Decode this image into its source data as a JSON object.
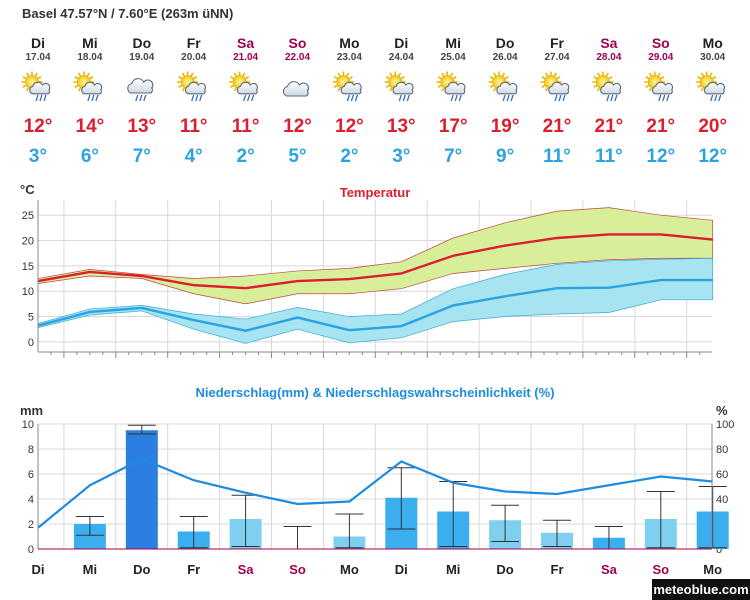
{
  "location": "Basel  47.57°N / 7.60°E (263m üNN)",
  "brand": "meteoblue.com",
  "colors": {
    "weekday": "#222222",
    "weekend": "#a00050",
    "tmax": "#dd1e2f",
    "tmin": "#2aa3e0",
    "tmax_band": "#d8ef9a",
    "tmin_band": "#a6e4f2",
    "precip_bar": "#3baef0",
    "precip_bar_dark": "#2b7fe0",
    "prob_line": "#1d8ce0"
  },
  "days": [
    {
      "name": "Di",
      "date": "17.04",
      "weekend": false,
      "icon": "sun-cloud-rain-icon",
      "tmax": "12°",
      "tmin": "3°"
    },
    {
      "name": "Mi",
      "date": "18.04",
      "weekend": false,
      "icon": "sun-cloud-rain-icon",
      "tmax": "14°",
      "tmin": "6°"
    },
    {
      "name": "Do",
      "date": "19.04",
      "weekend": false,
      "icon": "cloud-rain-icon",
      "tmax": "13°",
      "tmin": "7°"
    },
    {
      "name": "Fr",
      "date": "20.04",
      "weekend": false,
      "icon": "sun-cloud-rain-icon",
      "tmax": "11°",
      "tmin": "4°"
    },
    {
      "name": "Sa",
      "date": "21.04",
      "weekend": true,
      "icon": "sun-cloud-rain-icon",
      "tmax": "11°",
      "tmin": "2°"
    },
    {
      "name": "So",
      "date": "22.04",
      "weekend": true,
      "icon": "cloud-icon",
      "tmax": "12°",
      "tmin": "5°"
    },
    {
      "name": "Mo",
      "date": "23.04",
      "weekend": false,
      "icon": "sun-cloud-rain-icon",
      "tmax": "12°",
      "tmin": "2°"
    },
    {
      "name": "Di",
      "date": "24.04",
      "weekend": false,
      "icon": "sun-cloud-rain-icon",
      "tmax": "13°",
      "tmin": "3°"
    },
    {
      "name": "Mi",
      "date": "25.04",
      "weekend": false,
      "icon": "sun-cloud-rain-icon",
      "tmax": "17°",
      "tmin": "7°"
    },
    {
      "name": "Do",
      "date": "26.04",
      "weekend": false,
      "icon": "sun-cloud-rain-icon",
      "tmax": "19°",
      "tmin": "9°"
    },
    {
      "name": "Fr",
      "date": "27.04",
      "weekend": false,
      "icon": "sun-cloud-rain-icon",
      "tmax": "21°",
      "tmin": "11°"
    },
    {
      "name": "Sa",
      "date": "28.04",
      "weekend": true,
      "icon": "sun-cloud-rain-icon",
      "tmax": "21°",
      "tmin": "11°"
    },
    {
      "name": "So",
      "date": "29.04",
      "weekend": true,
      "icon": "sun-cloud-rain-icon",
      "tmax": "21°",
      "tmin": "12°"
    },
    {
      "name": "Mo",
      "date": "30.04",
      "weekend": false,
      "icon": "sun-cloud-rain-icon",
      "tmax": "20°",
      "tmin": "12°"
    }
  ],
  "chart_data": [
    {
      "type": "line",
      "title": "Temperatur",
      "ylabel": "°C",
      "ylim": [
        -2,
        28
      ],
      "yticks": [
        0,
        5,
        10,
        15,
        20,
        25
      ],
      "grid": true,
      "series": [
        {
          "values": [
            12,
            13.8,
            13,
            11.2,
            10.6,
            12,
            12.4,
            13.5,
            17,
            19,
            20.5,
            21.2,
            21.2,
            20.2
          ],
          "band_low": [
            11.5,
            13,
            12.5,
            9.5,
            7.5,
            9.5,
            9.5,
            10.5,
            13.5,
            14.5,
            15.5,
            16.2,
            16.5,
            16.5
          ],
          "band_high": [
            12.5,
            14.3,
            13.3,
            12.5,
            13,
            14,
            14.5,
            15.8,
            20.5,
            23.5,
            25.8,
            26.5,
            25,
            24
          ]
        },
        {
          "values": [
            3.2,
            5.9,
            6.7,
            4.3,
            2.2,
            4.8,
            2.3,
            3.1,
            7.2,
            9,
            10.6,
            10.7,
            12.2,
            12.2
          ],
          "band_low": [
            2.8,
            5.3,
            6.1,
            2.5,
            -0.3,
            2.5,
            -0.2,
            0.8,
            4,
            5,
            5.5,
            5.8,
            8.3,
            8.3
          ],
          "band_high": [
            3.6,
            6.5,
            7.2,
            5.5,
            4.5,
            6.8,
            5,
            5.5,
            10.5,
            13.3,
            15.3,
            16,
            16.3,
            16.5
          ]
        }
      ]
    },
    {
      "type": "bar",
      "title": "Niederschlag(mm) & Niederschlagswahrscheinlichkeit (%)",
      "ylabel": "mm",
      "ylim": [
        0,
        10
      ],
      "yticks": [
        0,
        2,
        4,
        6,
        8,
        10
      ],
      "y2label": "%",
      "y2lim": [
        0,
        100
      ],
      "y2ticks": [
        0,
        20,
        40,
        60,
        80,
        100
      ],
      "grid": true,
      "categories": [
        "Di",
        "Mi",
        "Do",
        "Fr",
        "Sa",
        "So",
        "Mo",
        "Di",
        "Mi",
        "Do",
        "Fr",
        "Sa",
        "So",
        "Mo"
      ],
      "precip_mm": [
        0,
        2.0,
        9.5,
        1.4,
        2.4,
        0,
        1.0,
        4.1,
        3.0,
        2.3,
        1.3,
        0.9,
        2.4,
        3.0
      ],
      "precip_range": [
        null,
        [
          1.1,
          2.6
        ],
        [
          9.2,
          9.9
        ],
        [
          0.1,
          2.6
        ],
        [
          0.2,
          4.3
        ],
        [
          0,
          1.8
        ],
        [
          0.1,
          2.8
        ],
        [
          1.6,
          6.5
        ],
        [
          0.2,
          5.4
        ],
        [
          0.6,
          3.5
        ],
        [
          0.2,
          2.3
        ],
        [
          0,
          1.8
        ],
        [
          0.1,
          4.6
        ],
        [
          0.1,
          5.0
        ]
      ],
      "probability_pct": [
        17,
        51,
        72,
        55,
        45,
        36,
        38,
        70,
        53,
        46,
        44,
        51,
        58,
        54
      ]
    }
  ],
  "xaxis_days": [
    "Di",
    "Mi",
    "Do",
    "Fr",
    "Sa",
    "So",
    "Mo",
    "Di",
    "Mi",
    "Do",
    "Fr",
    "Sa",
    "So",
    "Mo"
  ],
  "xaxis_weekend": [
    false,
    false,
    false,
    false,
    true,
    true,
    false,
    false,
    false,
    false,
    false,
    true,
    true,
    false
  ]
}
